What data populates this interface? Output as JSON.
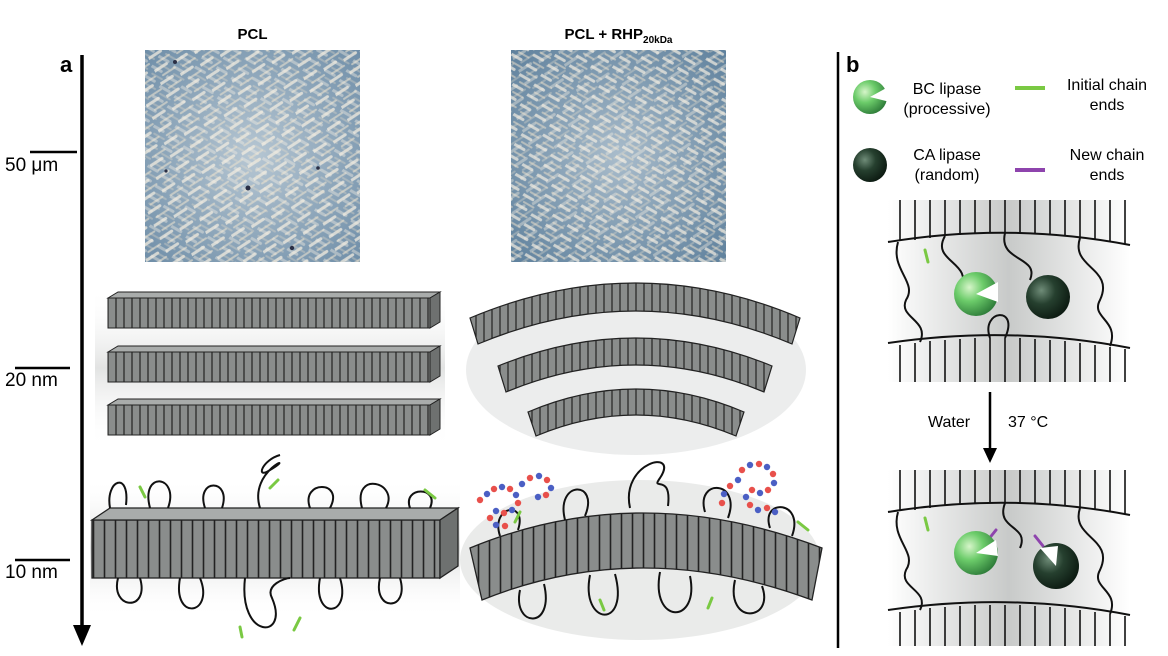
{
  "panel_a": {
    "letter": "a",
    "col1_title": "PCL",
    "col2_title_main": "PCL + RHP",
    "col2_title_sub": "20kDa",
    "scale_labels": [
      "50 μm",
      "20 nm",
      "10 nm"
    ]
  },
  "panel_b": {
    "letter": "b",
    "legend": [
      {
        "label_line1": "BC lipase",
        "label_line2": "(processive)",
        "swatch_color": "#5cb85c"
      },
      {
        "label_line1": "Initial chain",
        "label_line2": "ends",
        "swatch_color": "#7ac943"
      },
      {
        "label_line1": "CA lipase",
        "label_line2": "(random)",
        "swatch_color": "#1f3d2b"
      },
      {
        "label_line1": "New chain",
        "label_line2": "ends",
        "swatch_color": "#8e44ad"
      }
    ],
    "arrow_left_label": "Water",
    "arrow_right_label": "37 °C"
  },
  "colors": {
    "lamella_fill": "#8a8d8c",
    "micrograph_base": "#7f9bb3",
    "micrograph_highlight": "#e9e4d6",
    "rhp_red": "#e8504b",
    "rhp_blue": "#4b5fc4",
    "initial_end": "#7ac943",
    "new_end": "#8e44ad"
  }
}
